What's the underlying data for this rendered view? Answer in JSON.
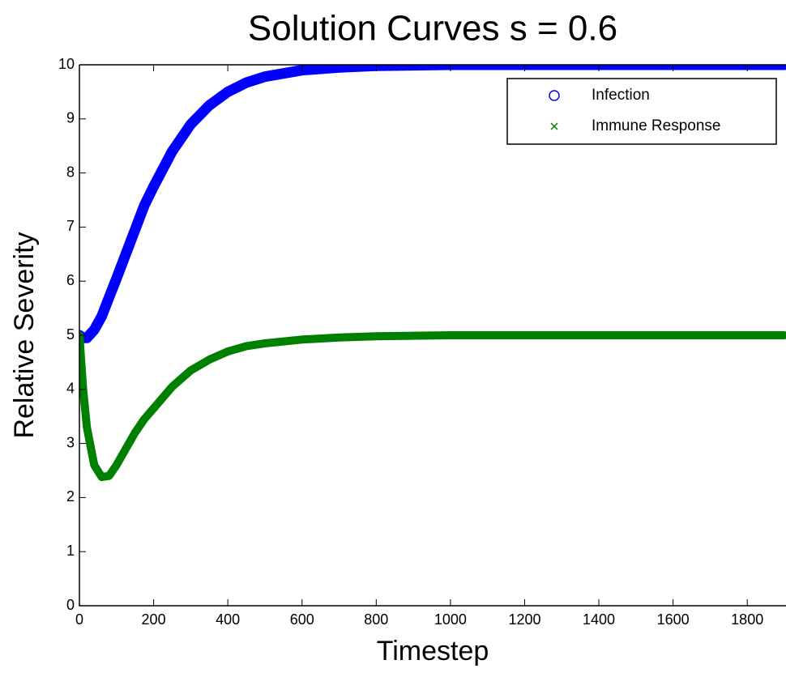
{
  "chart_data": {
    "type": "line",
    "title": "Solution Curves s = 0.6",
    "x_label": "Timestep",
    "y_label": "Relative Severity",
    "x": [
      0,
      10,
      20,
      40,
      60,
      80,
      100,
      125,
      150,
      175,
      200,
      250,
      300,
      350,
      400,
      450,
      500,
      600,
      700,
      800,
      1000,
      1200,
      1400,
      1600,
      1900
    ],
    "series": [
      {
        "name": "Infection",
        "color": "#0000ff",
        "marker": "o",
        "values": [
          5,
          4.95,
          4.95,
          5.1,
          5.35,
          5.7,
          6.05,
          6.5,
          6.95,
          7.4,
          7.75,
          8.4,
          8.9,
          9.25,
          9.5,
          9.67,
          9.78,
          9.9,
          9.95,
          9.98,
          10,
          10,
          10,
          10,
          10
        ]
      },
      {
        "name": "Immune Response",
        "color": "#008000",
        "marker": "x",
        "values": [
          5,
          4,
          3.3,
          2.6,
          2.38,
          2.4,
          2.6,
          2.9,
          3.2,
          3.45,
          3.65,
          4.05,
          4.35,
          4.55,
          4.7,
          4.8,
          4.85,
          4.92,
          4.96,
          4.98,
          5,
          5,
          5,
          5,
          5
        ]
      }
    ],
    "xlim": [
      0,
      1900
    ],
    "ylim": [
      0,
      10
    ],
    "xticks": [
      0,
      200,
      400,
      600,
      800,
      1000,
      1200,
      1400,
      1600,
      1800
    ],
    "yticks": [
      0,
      1,
      2,
      3,
      4,
      5,
      6,
      7,
      8,
      9,
      10
    ],
    "grid": false,
    "legend": "upper right"
  }
}
